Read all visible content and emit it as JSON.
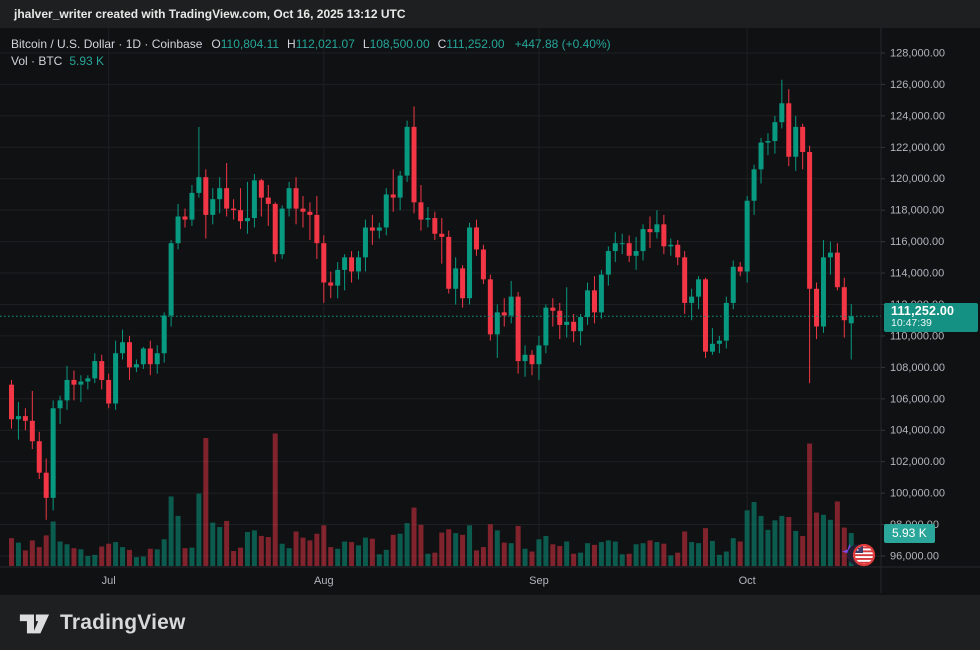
{
  "attribution": {
    "text": "jhalver_writer created with TradingView.com, Oct 16, 2025 13:12 UTC"
  },
  "legend": {
    "symbol_line": {
      "title": "Bitcoin / U.S. Dollar · 1D · Coinbase",
      "o_label": "O",
      "o": "110,804.11",
      "h_label": "H",
      "h": "112,021.07",
      "l_label": "L",
      "l": "108,500.00",
      "c_label": "C",
      "c": "111,252.00",
      "change": "+447.88 (+0.40%)"
    },
    "volume_line": {
      "label": "Vol · BTC",
      "value": "5.93 K"
    }
  },
  "price_scale": {
    "last_price": {
      "label": "111,252.00",
      "countdown": "10:47:39"
    },
    "volume_tag": "5.93 K"
  },
  "footer": {
    "brand": "TradingView"
  },
  "colors": {
    "up": "#089981",
    "down": "#f23645",
    "vol_up": "rgba(8,153,129,0.55)",
    "vol_down": "rgba(242,54,69,0.5)",
    "grid": "#1d2023",
    "axis_text": "#b2b5be",
    "tag_bg": "#149182"
  },
  "chart_data": {
    "type": "candlestick+volume",
    "title": "Bitcoin / U.S. Dollar",
    "interval": "1D",
    "exchange": "Coinbase",
    "start_date": "2025-06-17",
    "end_date": "2025-10-16",
    "last_price": 111252.0,
    "ylim": [
      95300,
      129590
    ],
    "price_tick_step": 2000,
    "grid": true,
    "legend_position": "top-left",
    "price_ticks": [
      {
        "label": "128,000.00",
        "value": 128000
      },
      {
        "label": "126,000.00",
        "value": 126000
      },
      {
        "label": "124,000.00",
        "value": 124000
      },
      {
        "label": "122,000.00",
        "value": 122000
      },
      {
        "label": "120,000.00",
        "value": 120000
      },
      {
        "label": "118,000.00",
        "value": 118000
      },
      {
        "label": "116,000.00",
        "value": 116000
      },
      {
        "label": "114,000.00",
        "value": 114000
      },
      {
        "label": "112,000.00",
        "value": 112000
      },
      {
        "label": "110,000.00",
        "value": 110000
      },
      {
        "label": "108,000.00",
        "value": 108000
      },
      {
        "label": "106,000.00",
        "value": 106000
      },
      {
        "label": "104,000.00",
        "value": 104000
      },
      {
        "label": "102,000.00",
        "value": 102000
      },
      {
        "label": "100,000.00",
        "value": 100000
      },
      {
        "label": "98,000.00",
        "value": 98000
      },
      {
        "label": "96,000.00",
        "value": 96000
      }
    ],
    "months": [
      {
        "label": "Jul",
        "index": 14
      },
      {
        "label": "Aug",
        "index": 45
      },
      {
        "label": "Sep",
        "index": 76
      },
      {
        "label": "Oct",
        "index": 106
      }
    ],
    "ohlcv_fields": [
      "open",
      "high",
      "low",
      "close",
      "volume_kBTC"
    ],
    "ohlcv": [
      [
        106900,
        107200,
        104100,
        104700,
        5.0
      ],
      [
        104700,
        105800,
        103400,
        104900,
        4.2
      ],
      [
        104900,
        105400,
        104000,
        104600,
        2.8
      ],
      [
        104600,
        106500,
        102800,
        103300,
        4.6
      ],
      [
        103300,
        103900,
        100900,
        101300,
        3.4
      ],
      [
        101300,
        102200,
        98300,
        99700,
        5.5
      ],
      [
        99700,
        105900,
        98900,
        105400,
        8.0
      ],
      [
        105400,
        106200,
        104400,
        105900,
        4.4
      ],
      [
        105900,
        108100,
        105300,
        107200,
        3.9
      ],
      [
        107200,
        107800,
        105900,
        106900,
        3.2
      ],
      [
        106900,
        107500,
        105800,
        107100,
        3.0
      ],
      [
        107100,
        107500,
        106600,
        107300,
        1.8
      ],
      [
        107300,
        108900,
        107000,
        108400,
        2.0
      ],
      [
        108400,
        108800,
        106600,
        107200,
        3.5
      ],
      [
        107200,
        107600,
        105400,
        105700,
        4.0
      ],
      [
        105700,
        109700,
        105300,
        108900,
        4.3
      ],
      [
        108900,
        110400,
        108500,
        109600,
        3.4
      ],
      [
        109600,
        110000,
        107200,
        108000,
        2.9
      ],
      [
        108000,
        108500,
        107700,
        108200,
        1.6
      ],
      [
        108200,
        109300,
        107900,
        109200,
        1.7
      ],
      [
        109200,
        109700,
        107500,
        108200,
        3.1
      ],
      [
        108200,
        109400,
        107600,
        108900,
        3.0
      ],
      [
        108900,
        111500,
        108300,
        111300,
        4.8
      ],
      [
        111300,
        116100,
        110600,
        115900,
        12.5
      ],
      [
        115900,
        118400,
        115500,
        117600,
        9.0
      ],
      [
        117600,
        118100,
        116900,
        117400,
        3.2
      ],
      [
        117400,
        119600,
        117000,
        119100,
        3.3
      ],
      [
        119100,
        123300,
        118800,
        120100,
        13.0
      ],
      [
        120100,
        120600,
        116200,
        117700,
        23.0
      ],
      [
        117700,
        119400,
        117100,
        118700,
        7.8
      ],
      [
        118700,
        120100,
        117800,
        119400,
        7.0
      ],
      [
        119400,
        121000,
        117600,
        118100,
        8.1
      ],
      [
        118100,
        118700,
        117400,
        118000,
        2.7
      ],
      [
        118000,
        119400,
        116800,
        117300,
        3.3
      ],
      [
        117300,
        119800,
        116500,
        117500,
        6.1
      ],
      [
        117500,
        120300,
        116900,
        119900,
        6.4
      ],
      [
        119900,
        120000,
        117600,
        118800,
        5.4
      ],
      [
        118800,
        119600,
        117000,
        118400,
        5.2
      ],
      [
        118400,
        118500,
        114700,
        115200,
        23.8
      ],
      [
        115200,
        118300,
        114900,
        118100,
        4.0
      ],
      [
        118100,
        119800,
        117600,
        119400,
        3.2
      ],
      [
        119400,
        120100,
        117100,
        118100,
        6.2
      ],
      [
        118100,
        118900,
        116900,
        117900,
        5.1
      ],
      [
        117900,
        118500,
        116100,
        117700,
        4.6
      ],
      [
        117700,
        118900,
        114900,
        115900,
        5.8
      ],
      [
        115900,
        116400,
        112100,
        113400,
        7.3
      ],
      [
        113400,
        114100,
        112400,
        113200,
        3.4
      ],
      [
        113200,
        114700,
        112400,
        114200,
        3.1
      ],
      [
        114200,
        115200,
        112900,
        115000,
        4.4
      ],
      [
        115000,
        115400,
        113400,
        114100,
        4.3
      ],
      [
        114100,
        115400,
        113600,
        115000,
        3.7
      ],
      [
        115000,
        117400,
        114100,
        116900,
        5.1
      ],
      [
        116900,
        117700,
        115800,
        116700,
        4.9
      ],
      [
        116700,
        117200,
        116200,
        116900,
        2.1
      ],
      [
        116900,
        119400,
        116400,
        119000,
        2.9
      ],
      [
        119000,
        120600,
        117900,
        118800,
        5.6
      ],
      [
        118800,
        120500,
        118000,
        120200,
        5.8
      ],
      [
        120200,
        123700,
        119800,
        123300,
        7.7
      ],
      [
        123300,
        124600,
        117800,
        118500,
        10.5
      ],
      [
        118500,
        119600,
        116700,
        117400,
        7.4
      ],
      [
        117400,
        118200,
        116900,
        117500,
        2.2
      ],
      [
        117500,
        117900,
        116100,
        116500,
        2.4
      ],
      [
        116500,
        117500,
        114600,
        116300,
        6.0
      ],
      [
        116300,
        116700,
        112700,
        113000,
        6.6
      ],
      [
        113000,
        115000,
        112000,
        114300,
        5.9
      ],
      [
        114300,
        114500,
        111800,
        112400,
        5.6
      ],
      [
        112400,
        117200,
        112000,
        116900,
        7.3
      ],
      [
        116900,
        117400,
        115100,
        115500,
        2.8
      ],
      [
        115500,
        115800,
        113300,
        113600,
        3.4
      ],
      [
        113600,
        113900,
        109700,
        110100,
        7.5
      ],
      [
        110100,
        112000,
        108600,
        111500,
        6.4
      ],
      [
        111500,
        112400,
        110600,
        111300,
        4.2
      ],
      [
        111300,
        113500,
        110800,
        112500,
        4.1
      ],
      [
        112500,
        112800,
        107600,
        108400,
        7.2
      ],
      [
        108400,
        109400,
        107400,
        108800,
        3.1
      ],
      [
        108800,
        109100,
        107500,
        108200,
        2.6
      ],
      [
        108200,
        110000,
        107200,
        109400,
        4.8
      ],
      [
        109400,
        112000,
        108900,
        111800,
        5.4
      ],
      [
        111800,
        112400,
        110600,
        111600,
        3.9
      ],
      [
        111600,
        112100,
        109800,
        110700,
        3.6
      ],
      [
        110700,
        113100,
        109900,
        110900,
        4.4
      ],
      [
        110900,
        111400,
        109600,
        110300,
        2.2
      ],
      [
        110300,
        111400,
        109400,
        111200,
        2.4
      ],
      [
        111200,
        113400,
        110700,
        112900,
        4.1
      ],
      [
        112900,
        113800,
        110800,
        111500,
        3.8
      ],
      [
        111500,
        114200,
        111100,
        113900,
        4.3
      ],
      [
        113900,
        115700,
        113200,
        115400,
        4.6
      ],
      [
        115400,
        116600,
        114700,
        115900,
        4.4
      ],
      [
        115900,
        116500,
        115200,
        115900,
        2.1
      ],
      [
        115900,
        116400,
        114700,
        115100,
        2.2
      ],
      [
        115100,
        116300,
        114200,
        115400,
        3.9
      ],
      [
        115400,
        117100,
        114800,
        116800,
        4.1
      ],
      [
        116800,
        117600,
        115600,
        116600,
        4.6
      ],
      [
        116600,
        118000,
        116200,
        117100,
        4.3
      ],
      [
        117100,
        117700,
        115200,
        115700,
        4.0
      ],
      [
        115700,
        116200,
        115100,
        115800,
        1.9
      ],
      [
        115800,
        116100,
        114500,
        115000,
        2.4
      ],
      [
        115000,
        115400,
        111400,
        112100,
        6.2
      ],
      [
        112100,
        113000,
        111000,
        112500,
        4.3
      ],
      [
        112500,
        113800,
        111700,
        113600,
        4.1
      ],
      [
        113600,
        113700,
        108600,
        109000,
        6.8
      ],
      [
        109000,
        110500,
        108800,
        109500,
        4.5
      ],
      [
        109500,
        110000,
        108900,
        109700,
        2.0
      ],
      [
        109700,
        112500,
        109200,
        112100,
        2.6
      ],
      [
        112100,
        114800,
        111700,
        114400,
        5.0
      ],
      [
        114400,
        114700,
        113800,
        114100,
        4.4
      ],
      [
        114100,
        118900,
        113400,
        118600,
        10.0
      ],
      [
        118600,
        120900,
        117700,
        120600,
        11.5
      ],
      [
        120600,
        122600,
        119700,
        122300,
        9.0
      ],
      [
        122300,
        122900,
        121500,
        122400,
        6.5
      ],
      [
        122400,
        124000,
        121600,
        123600,
        8.2
      ],
      [
        123600,
        126300,
        123200,
        124800,
        9.0
      ],
      [
        124800,
        125700,
        120800,
        121400,
        8.8
      ],
      [
        121400,
        124000,
        120500,
        123300,
        6.3
      ],
      [
        123300,
        123500,
        120600,
        121700,
        5.4
      ],
      [
        121700,
        122100,
        107000,
        113000,
        22.0
      ],
      [
        113000,
        113400,
        109800,
        110600,
        9.6
      ],
      [
        110600,
        116100,
        110200,
        115000,
        9.2
      ],
      [
        115000,
        116000,
        113900,
        115300,
        8.3
      ],
      [
        115300,
        115900,
        112900,
        113100,
        11.6
      ],
      [
        113100,
        113700,
        109900,
        111000,
        6.9
      ],
      [
        110804.11,
        112021.07,
        108500,
        111252,
        5.93
      ]
    ]
  }
}
